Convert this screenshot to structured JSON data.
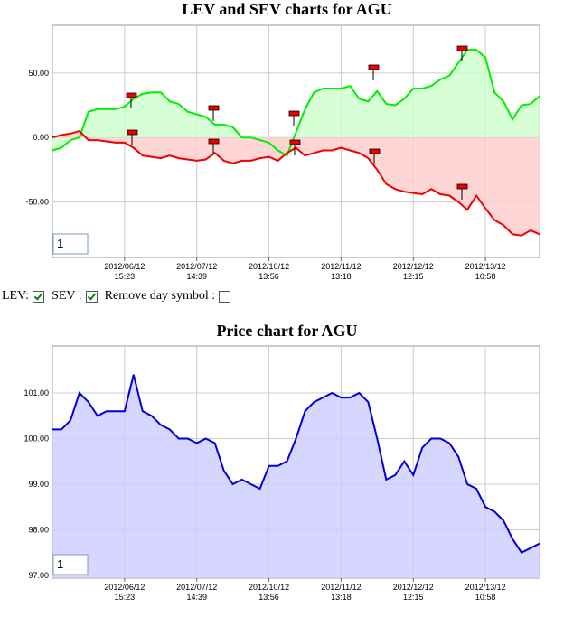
{
  "chart_data": [
    {
      "type": "area",
      "title": "LEV and SEV charts for AGU",
      "xlim": [
        0,
        54
      ],
      "xticks": [
        {
          "value": 8,
          "label": [
            "2012/06/12",
            "15:23"
          ]
        },
        {
          "value": 16,
          "label": [
            "2012/07/12",
            "14:39"
          ]
        },
        {
          "value": 24,
          "label": [
            "2012/10/12",
            "13:56"
          ]
        },
        {
          "value": 32,
          "label": [
            "2012/11/12",
            "13:18"
          ]
        },
        {
          "value": 40,
          "label": [
            "2012/12/12",
            "12:15"
          ]
        },
        {
          "value": 48,
          "label": [
            "2012/13/12",
            "10:58"
          ]
        }
      ],
      "ylim": [
        -93,
        87
      ],
      "yticks": [
        {
          "value": -50,
          "label": "-50.00"
        },
        {
          "value": 0,
          "label": "0.00"
        },
        {
          "value": 50,
          "label": "50.00"
        }
      ],
      "grid": true,
      "zoom_input": "1",
      "series": [
        {
          "name": "LEV",
          "color": "#00ee00",
          "fill": "#ccffcc",
          "values": [
            -10,
            -8,
            -2,
            0,
            20,
            22,
            22,
            22,
            24,
            30,
            34,
            35,
            35,
            28,
            26,
            20,
            18,
            16,
            10,
            10,
            8,
            0,
            0,
            -2,
            -4,
            -10,
            -14,
            4,
            22,
            35,
            38,
            38,
            38,
            40,
            30,
            28,
            36,
            26,
            25,
            30,
            38,
            38,
            40,
            45,
            48,
            58,
            68,
            68,
            62,
            35,
            28,
            14,
            25,
            26,
            32
          ]
        },
        {
          "name": "SEV",
          "color": "#ee0000",
          "fill": "#ffcccc",
          "values": [
            0,
            2,
            3,
            5,
            -2,
            -2,
            -3,
            -4,
            -4,
            -8,
            -14,
            -15,
            -16,
            -14,
            -16,
            -17,
            -18,
            -17,
            -12,
            -18,
            -20,
            -18,
            -18,
            -16,
            -15,
            -18,
            -12,
            -8,
            -14,
            -12,
            -10,
            -10,
            -8,
            -10,
            -12,
            -16,
            -25,
            -36,
            -40,
            -42,
            -43,
            -44,
            -40,
            -44,
            -45,
            -50,
            -56,
            -45,
            -55,
            -64,
            -68,
            -75,
            -76,
            -72,
            -75
          ]
        }
      ]
    },
    {
      "type": "area",
      "title": "Price chart for AGU",
      "xlim": [
        0,
        54
      ],
      "xticks": [
        {
          "value": 8,
          "label": [
            "2012/06/12",
            "15:23"
          ]
        },
        {
          "value": 16,
          "label": [
            "2012/07/12",
            "14:39"
          ]
        },
        {
          "value": 24,
          "label": [
            "2012/10/12",
            "13:56"
          ]
        },
        {
          "value": 32,
          "label": [
            "2012/11/12",
            "13:18"
          ]
        },
        {
          "value": 40,
          "label": [
            "2012/12/12",
            "12:15"
          ]
        },
        {
          "value": 48,
          "label": [
            "2012/13/12",
            "10:58"
          ]
        }
      ],
      "ylim": [
        96.94,
        102.03
      ],
      "yticks": [
        {
          "value": 97,
          "label": "97.00"
        },
        {
          "value": 98,
          "label": "98.00"
        },
        {
          "value": 99,
          "label": "99.00"
        },
        {
          "value": 100,
          "label": "100.00"
        },
        {
          "value": 101,
          "label": "101.00"
        }
      ],
      "grid": true,
      "zoom_input": "1",
      "series": [
        {
          "name": "Price",
          "color": "#0000dd",
          "fill": "#ccccff",
          "values": [
            100.2,
            100.2,
            100.4,
            101.0,
            100.8,
            100.5,
            100.6,
            100.6,
            100.6,
            101.4,
            100.6,
            100.5,
            100.3,
            100.2,
            100.0,
            100.0,
            99.9,
            100.0,
            99.9,
            99.3,
            99.0,
            99.1,
            99.0,
            98.9,
            99.4,
            99.4,
            99.5,
            100.0,
            100.6,
            100.8,
            100.9,
            101.0,
            100.9,
            100.9,
            101.0,
            100.8,
            100.0,
            99.1,
            99.2,
            99.5,
            99.2,
            99.8,
            100.0,
            100.0,
            99.9,
            99.6,
            99.0,
            98.9,
            98.5,
            98.4,
            98.2,
            97.8,
            97.5,
            97.6,
            97.7
          ]
        }
      ]
    }
  ],
  "controls": {
    "lev_label": "LEV:",
    "lev_checked": true,
    "sev_label": "SEV :",
    "sev_checked": true,
    "remove_label": "Remove day symbol :",
    "remove_checked": false
  }
}
